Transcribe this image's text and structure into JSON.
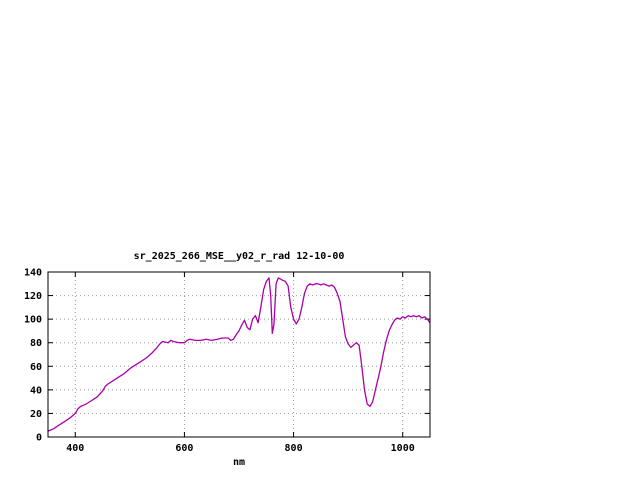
{
  "window": {
    "background": "#ffffff"
  },
  "chart_data": {
    "type": "line",
    "title": "sr_2025_266_MSE__y02_r_rad 12-10-00",
    "xlabel": "nm",
    "ylabel": "",
    "xlim": [
      350,
      1050
    ],
    "ylim": [
      0,
      140
    ],
    "xticks": [
      400,
      600,
      800,
      1000
    ],
    "yticks": [
      0,
      20,
      40,
      60,
      80,
      100,
      120,
      140
    ],
    "grid": true,
    "legend": "none",
    "line_color": "#aa00aa",
    "grid_color": "#9a9a9a",
    "axis_color": "#000000",
    "x": [
      350,
      360,
      370,
      380,
      390,
      400,
      405,
      410,
      415,
      420,
      430,
      440,
      450,
      455,
      460,
      470,
      480,
      490,
      500,
      510,
      520,
      530,
      540,
      550,
      555,
      560,
      570,
      575,
      580,
      590,
      600,
      605,
      610,
      620,
      630,
      640,
      650,
      660,
      670,
      680,
      685,
      690,
      695,
      700,
      705,
      710,
      715,
      720,
      725,
      730,
      735,
      740,
      745,
      750,
      755,
      758,
      761,
      764,
      768,
      772,
      776,
      780,
      785,
      790,
      795,
      800,
      805,
      810,
      815,
      820,
      825,
      830,
      835,
      840,
      845,
      850,
      855,
      860,
      865,
      870,
      875,
      880,
      885,
      890,
      895,
      900,
      905,
      910,
      915,
      920,
      925,
      930,
      935,
      940,
      945,
      950,
      955,
      960,
      965,
      970,
      975,
      980,
      985,
      990,
      995,
      1000,
      1005,
      1010,
      1015,
      1020,
      1025,
      1030,
      1035,
      1040,
      1045,
      1050
    ],
    "values": [
      5,
      7,
      10,
      13,
      16,
      20,
      24,
      26,
      27,
      28,
      31,
      34,
      39,
      43,
      45,
      48,
      51,
      54,
      58,
      61,
      64,
      67,
      71,
      76,
      79,
      81,
      80,
      82,
      81,
      80,
      80,
      82,
      83,
      82,
      82,
      83,
      82,
      83,
      84,
      84,
      82,
      83,
      87,
      90,
      95,
      99,
      93,
      91,
      100,
      103,
      97,
      110,
      125,
      132,
      135,
      120,
      88,
      95,
      130,
      135,
      134,
      133,
      132,
      128,
      110,
      100,
      96,
      100,
      110,
      122,
      128,
      130,
      129,
      130,
      130,
      129,
      130,
      129,
      128,
      129,
      127,
      122,
      115,
      100,
      85,
      79,
      76,
      78,
      80,
      78,
      60,
      40,
      28,
      26,
      30,
      40,
      50,
      60,
      72,
      82,
      90,
      95,
      99,
      101,
      100,
      102,
      101,
      103,
      102,
      103,
      102,
      103,
      101,
      102,
      100,
      97
    ]
  }
}
